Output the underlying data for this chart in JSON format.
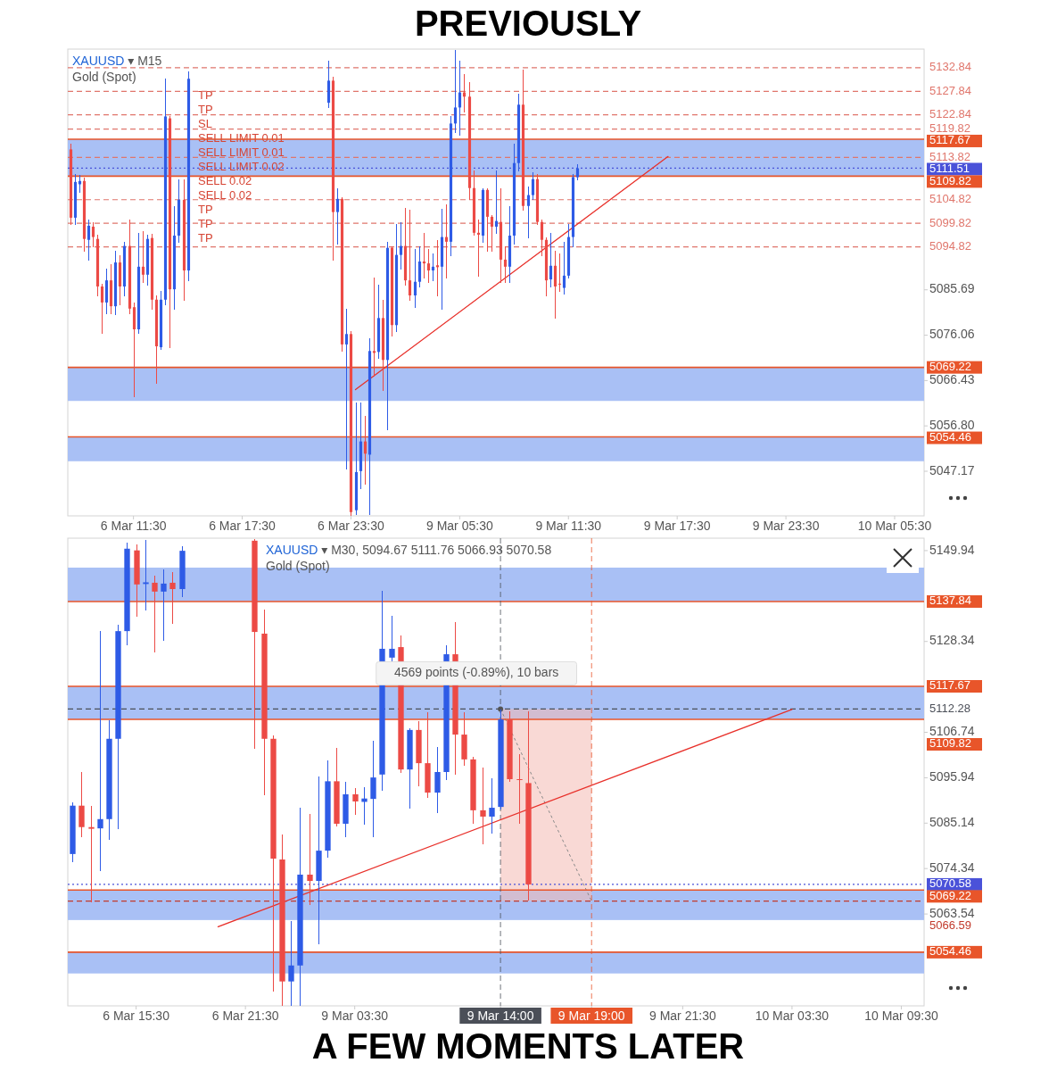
{
  "chart_data": [
    {
      "type": "candlestick",
      "title": "PREVIOUSLY",
      "subtitle": "XAUUSD ▾ M15",
      "annotations": [
        "Gold (Spot)",
        "TP",
        "TP",
        "SL",
        "SELL LIMIT 0.01",
        "SELL LIMIT 0.01",
        "SELL LIMIT 0.02",
        "SELL 0.02",
        "SELL 0.02",
        "TP",
        "TP",
        "TP"
      ],
      "categories": [
        null,
        null,
        null,
        null,
        null,
        null,
        null,
        null,
        null,
        null,
        null,
        null,
        null,
        null,
        "6 Mar 11:30",
        null,
        null,
        null,
        null,
        null,
        null,
        null,
        null,
        null,
        null,
        null,
        null,
        null,
        null,
        null,
        null,
        null,
        null,
        null,
        null,
        null,
        null,
        null,
        "6 Mar 17:30",
        null,
        null,
        null,
        null,
        null,
        null,
        null,
        null,
        null,
        null,
        null,
        null,
        null,
        null,
        null,
        null,
        null,
        null,
        null,
        null,
        null,
        null,
        null,
        "6 Mar 23:30",
        null,
        null,
        null,
        null,
        null,
        null,
        null,
        null,
        null,
        null,
        null,
        null,
        null,
        null,
        null,
        null,
        null,
        null,
        null,
        null,
        null,
        null,
        null,
        "9 Mar 05:30",
        null,
        null,
        null,
        null,
        null,
        null,
        null,
        null,
        null,
        null,
        null,
        null,
        null,
        null,
        null,
        null,
        null,
        null,
        null,
        null,
        null,
        null,
        null,
        "9 Mar 11:30",
        null,
        null,
        null,
        null,
        null,
        null,
        null,
        null,
        null,
        null,
        null,
        null,
        null,
        null,
        null,
        null,
        null,
        null,
        null,
        null,
        null,
        null,
        null,
        "9 Mar 17:30",
        null,
        null,
        null,
        null,
        null,
        null,
        null,
        null,
        null,
        null,
        null,
        null,
        null,
        null,
        null,
        null,
        null,
        null,
        null,
        null,
        null,
        null,
        null,
        "9 Mar 23:30",
        null,
        null,
        null,
        null,
        null,
        null,
        null,
        null,
        null,
        null,
        null,
        null,
        null,
        null,
        null,
        null,
        null,
        null,
        null,
        null,
        null,
        null,
        null,
        "10 Mar 05:30",
        null,
        null,
        null,
        null,
        null,
        null
      ],
      "ylim": [
        5037.7,
        5136.8
      ],
      "yticks": [
        5085.69,
        5076.06,
        5066.43,
        {
          "value": 5056.8,
          "label": "5056.80"
        },
        5047.17
      ],
      "bands": [
        {
          "axis": "y",
          "from": 5109.82,
          "to": 5117.67,
          "color": "#a9c0f5"
        },
        {
          "axis": "y",
          "from": 5062.1,
          "to": 5069.22,
          "color": "#a9c0f5"
        },
        {
          "axis": "y",
          "from": 5049.3,
          "to": 5054.46,
          "color": "#a9c0f5"
        }
      ],
      "ref_lines": [
        {
          "axis": "y",
          "value": 5132.84,
          "label": "5132.84",
          "color": "#e0766c",
          "line_style": "dashed"
        },
        {
          "axis": "y",
          "value": 5127.84,
          "label": "5127.84",
          "color": "#e0766c",
          "line_style": "dashed"
        },
        {
          "axis": "y",
          "value": 5122.84,
          "label": "5122.84",
          "color": "#e0766c",
          "line_style": "dashed"
        },
        {
          "axis": "y",
          "value": 5119.82,
          "label": "5119.82",
          "color": "#e0766c",
          "line_style": "dashed"
        },
        {
          "axis": "y",
          "value": 5117.67,
          "label": "5117.67",
          "color": "#e8552a",
          "line_style": "solid"
        },
        {
          "axis": "y",
          "value": 5113.82,
          "label": "5113.82",
          "color": "#e0766c",
          "line_style": "dashed"
        },
        {
          "axis": "y",
          "value": 5111.51,
          "label": "5111.51",
          "color": "#4a52d9",
          "line_style": "dotted"
        },
        {
          "axis": "y",
          "value": 5109.82,
          "label": "5109.82",
          "color": "#e8552a",
          "line_style": "solid"
        },
        {
          "axis": "y",
          "value": 5104.82,
          "label": "5104.82",
          "color": "#e0766c",
          "line_style": "dashed"
        },
        {
          "axis": "y",
          "value": 5099.82,
          "label": "5099.82",
          "color": "#e0766c",
          "line_style": "dashed"
        },
        {
          "axis": "y",
          "value": 5094.82,
          "label": "5094.82",
          "color": "#e0766c",
          "line_style": "dashed"
        },
        {
          "axis": "y",
          "value": 5069.22,
          "label": "5069.22",
          "color": "#e8552a",
          "line_style": "solid"
        },
        {
          "axis": "y",
          "value": 5054.46,
          "label": "5054.46",
          "color": "#e8552a",
          "line_style": "solid"
        }
      ],
      "series": [
        {
          "color": "#2e5be6",
          "ohlc": [
            null,
            [
              5101.0,
              5110.2,
              5099.7,
              5108.6
            ],
            [
              5108.1,
              5110.0,
              5106.4,
              5108.8
            ],
            null,
            [
              5096.3,
              5100.7,
              5092.1,
              5099.3
            ],
            null,
            null,
            null,
            [
              5083.0,
              5090.2,
              5080.7,
              5087.7
            ],
            null,
            [
              5082.2,
              5094.0,
              5080.5,
              5091.5
            ],
            null,
            [
              5086.4,
              5095.9,
              5084.5,
              5095.0
            ],
            null,
            null,
            [
              5077.3,
              5097.8,
              5076.5,
              5090.6
            ],
            null,
            [
              5088.9,
              5097.4,
              5086.8,
              5096.5
            ],
            null,
            null,
            [
              5073.5,
              5085.4,
              5073.1,
              5083.6
            ],
            [
              5083.6,
              5130.5,
              5082.6,
              5122.5
            ],
            null,
            [
              5085.8,
              5103.5,
              5081.7,
              5097.2
            ],
            [
              5097.2,
              5109.2,
              5095.9,
              5104.8
            ],
            null,
            [
              5089.8,
              5132.0,
              5087.7,
              5130.5
            ],
            null,
            null,
            null,
            null,
            null,
            null,
            null,
            null,
            null,
            null,
            null,
            null,
            null,
            null,
            null,
            null,
            null,
            null,
            null,
            null,
            null,
            null,
            null,
            null,
            null,
            null,
            null,
            null,
            null,
            null,
            [
              5125.4,
              5134.3,
              5124.4,
              5130.1
            ],
            null,
            [
              5102.2,
              5107.3,
              5095.5,
              5105.0
            ],
            null,
            [
              5074.1,
              5081.7,
              5047.8,
              5076.3
            ],
            null,
            [
              5038.9,
              5061.7,
              5038.0,
              5047.0
            ],
            [
              5047.2,
              5061.7,
              5043.6,
              5053.5
            ],
            null,
            [
              5050.7,
              5075.4,
              5038.0,
              5072.7
            ],
            null,
            [
              5072.5,
              5086.8,
              5071.2,
              5079.7
            ],
            null,
            [
              5070.8,
              5095.9,
              5056.0,
              5094.6
            ],
            null,
            [
              5078.2,
              5099.7,
              5076.9,
              5093.1
            ],
            [
              5093.1,
              5100.1,
              5090.2,
              5095.0
            ],
            null,
            null,
            [
              5084.5,
              5094.4,
              5082.0,
              5087.4
            ],
            [
              5087.4,
              5095.0,
              5086.4,
              5091.7
            ],
            null,
            null,
            [
              5089.8,
              5093.4,
              5087.7,
              5090.6
            ],
            null,
            [
              5090.6,
              5102.9,
              5081.7,
              5096.9
            ],
            null,
            [
              5095.9,
              5122.5,
              5093.1,
              5121.0
            ],
            [
              5121.0,
              5136.6,
              5119.1,
              5124.4
            ],
            [
              5124.4,
              5134.3,
              5118.7,
              5127.6
            ],
            null,
            null,
            null,
            null,
            [
              5097.2,
              5107.3,
              5095.9,
              5106.9
            ],
            null,
            null,
            [
              5099.1,
              5111.1,
              5097.8,
              5100.3
            ],
            null,
            null,
            [
              5090.6,
              5103.5,
              5087.4,
              5097.2
            ],
            [
              5097.2,
              5116.8,
              5095.5,
              5112.6
            ],
            [
              5112.6,
              5127.3,
              5111.1,
              5125.0
            ],
            null,
            [
              5103.5,
              5107.7,
              5096.9,
              5105.8
            ],
            [
              5105.8,
              5110.7,
              5105.0,
              5109.2
            ],
            null,
            null,
            null,
            [
              5087.9,
              5097.8,
              5086.4,
              5090.8
            ],
            null,
            null,
            [
              5086.1,
              5095.9,
              5084.9,
              5088.7
            ],
            [
              5088.7,
              5099.7,
              5088.3,
              5096.9
            ],
            [
              5096.9,
              5110.2,
              5095.0,
              5109.6
            ],
            [
              5109.6,
              5112.4,
              5109.2,
              5111.5
            ],
            null,
            null,
            null,
            null,
            null,
            null,
            null,
            null,
            null,
            null,
            null,
            null,
            null,
            null,
            null,
            null,
            null,
            null,
            null,
            null,
            null,
            null,
            null,
            null,
            null,
            null,
            null,
            null,
            null,
            null,
            null,
            null,
            null,
            null,
            null,
            null,
            null,
            null,
            null,
            null,
            null,
            null,
            null,
            null,
            null,
            null,
            null,
            null,
            null,
            null,
            null,
            null,
            null,
            null,
            null,
            null,
            null,
            null,
            null,
            null,
            null,
            null,
            null,
            null,
            null,
            null,
            null,
            null,
            null,
            null,
            null,
            null,
            null,
            null,
            null,
            null
          ]
        },
        {
          "color": "#ec4a45",
          "ohlc": [
            [
              5115.5,
              5116.8,
              5099.7,
              5101.0
            ],
            null,
            null,
            [
              5108.8,
              5109.6,
              5094.0,
              5096.5
            ],
            null,
            [
              5099.1,
              5100.1,
              5094.9,
              5096.9
            ],
            [
              5096.5,
              5097.4,
              5084.5,
              5086.4
            ],
            [
              5086.4,
              5087.0,
              5076.5,
              5083.0
            ],
            null,
            [
              5087.7,
              5091.2,
              5080.7,
              5082.2
            ],
            null,
            [
              5091.5,
              5093.0,
              5082.6,
              5086.4
            ],
            null,
            [
              5095.0,
              5100.7,
              5080.7,
              5081.7
            ],
            [
              5082.0,
              5083.0,
              5063.0,
              5077.3
            ],
            null,
            [
              5090.6,
              5098.2,
              5087.4,
              5088.9
            ],
            null,
            [
              5096.7,
              5097.5,
              5081.7,
              5083.6
            ],
            [
              5083.6,
              5084.5,
              5065.9,
              5073.7
            ],
            null,
            null,
            [
              5122.1,
              5122.5,
              5073.5,
              5085.8
            ],
            null,
            null,
            [
              5104.8,
              5109.2,
              5083.6,
              5089.8
            ],
            null,
            null,
            null,
            null,
            null,
            null,
            null,
            null,
            null,
            null,
            null,
            null,
            null,
            null,
            null,
            null,
            null,
            null,
            null,
            null,
            null,
            null,
            null,
            null,
            null,
            null,
            null,
            null,
            null,
            null,
            null,
            null,
            [
              5130.1,
              5131.0,
              5092.1,
              5102.2
            ],
            null,
            [
              5105.0,
              5105.4,
              5072.7,
              5074.1
            ],
            null,
            [
              5076.3,
              5076.9,
              5037.9,
              5038.5
            ],
            null,
            null,
            [
              5053.5,
              5058.9,
              5044.6,
              5050.9
            ],
            null,
            [
              5072.7,
              5088.3,
              5067.4,
              5072.3
            ],
            null,
            [
              5079.7,
              5083.6,
              5064.5,
              5070.8
            ],
            null,
            [
              5094.6,
              5095.0,
              5076.0,
              5078.2
            ],
            null,
            null,
            [
              5095.0,
              5103.1,
              5086.8,
              5087.7
            ],
            [
              5087.7,
              5102.6,
              5083.6,
              5084.5
            ],
            null,
            null,
            [
              5091.7,
              5097.8,
              5088.3,
              5091.3
            ],
            [
              5091.3,
              5094.4,
              5087.4,
              5089.8
            ],
            null,
            [
              5090.9,
              5096.3,
              5084.5,
              5090.5
            ],
            null,
            [
              5096.9,
              5103.9,
              5088.3,
              5095.9
            ],
            null,
            null,
            null,
            [
              5127.6,
              5131.4,
              5123.5,
              5126.7
            ],
            [
              5126.7,
              5129.7,
              5105.0,
              5107.3
            ],
            [
              5107.3,
              5111.1,
              5097.4,
              5097.8
            ],
            [
              5097.8,
              5100.7,
              5088.7,
              5097.4
            ],
            null,
            [
              5106.9,
              5107.3,
              5094.0,
              5101.2
            ],
            [
              5101.2,
              5101.6,
              5094.0,
              5099.1
            ],
            null,
            [
              5100.1,
              5107.3,
              5087.4,
              5092.1
            ],
            [
              5092.1,
              5095.0,
              5087.4,
              5090.6
            ],
            null,
            null,
            null,
            [
              5125.0,
              5132.4,
              5102.6,
              5103.5
            ],
            null,
            null,
            [
              5109.2,
              5110.2,
              5099.7,
              5100.1
            ],
            [
              5100.1,
              5100.7,
              5093.1,
              5096.3
            ],
            [
              5096.3,
              5096.9,
              5084.5,
              5087.7
            ],
            null,
            [
              5090.8,
              5094.0,
              5079.7,
              5086.4
            ],
            [
              5087.0,
              5093.4,
              5085.4,
              5086.8
            ],
            null,
            null,
            null,
            null,
            null,
            null,
            null,
            null,
            null,
            null,
            null,
            null,
            null,
            null,
            null,
            null,
            null,
            null,
            null,
            null,
            null,
            null,
            null,
            null,
            null,
            null,
            null,
            null,
            null,
            null,
            null,
            null,
            null,
            null,
            null,
            null,
            null,
            null,
            null,
            null,
            null,
            null,
            null,
            null,
            null,
            null,
            null,
            null,
            null,
            null,
            null,
            null,
            null,
            null,
            null,
            null,
            null,
            null,
            null,
            null,
            null,
            null,
            null,
            null,
            null,
            null,
            null,
            null,
            null,
            null,
            null,
            null,
            null,
            null,
            null,
            null,
            null,
            null,
            null,
            null
          ]
        },
        {
          "type": "line",
          "color": "#e8302a",
          "values": [
            null,
            null,
            null,
            null,
            null,
            null,
            null,
            null,
            null,
            null,
            null,
            null,
            null,
            null,
            null,
            null,
            null,
            null,
            null,
            null,
            null,
            null,
            null,
            null,
            null,
            null,
            null,
            null,
            null,
            null,
            null,
            null,
            null,
            null,
            null,
            null,
            null,
            null,
            null,
            null,
            null,
            null,
            null,
            null,
            null,
            null,
            null,
            null,
            null,
            null,
            null,
            null,
            null,
            null,
            null,
            null,
            null,
            null,
            null,
            null,
            null,
            null,
            null,
            5064.5,
            null,
            null,
            null,
            null,
            null,
            null,
            null,
            null,
            null,
            null,
            null,
            null,
            null,
            null,
            null,
            null,
            null,
            null,
            null,
            null,
            null,
            null,
            null,
            null,
            null,
            null,
            null,
            null,
            null,
            null,
            null,
            null,
            null,
            null,
            null,
            null,
            null,
            null,
            null,
            null,
            null,
            null,
            null,
            null,
            null,
            null,
            null,
            null,
            null,
            null,
            null,
            null,
            null,
            null,
            null,
            null,
            null,
            null,
            null,
            null,
            null,
            null,
            null,
            null,
            null,
            null,
            null,
            null,
            5114.0,
            null,
            null,
            null,
            null,
            null,
            null,
            null,
            null,
            null,
            null,
            null,
            null,
            null,
            null,
            null,
            null,
            null,
            null,
            null,
            null,
            null,
            null,
            null,
            null,
            null,
            null,
            null,
            null,
            null,
            null,
            null,
            null,
            null,
            null,
            null,
            null,
            null,
            null,
            null,
            null,
            null,
            null,
            null,
            null,
            null,
            null,
            null,
            null,
            null,
            null,
            null,
            null,
            null,
            null,
            null,
            null
          ]
        }
      ]
    },
    {
      "type": "candlestick",
      "title": "A FEW MOMENTS LATER",
      "subtitle": "XAUUSD ▾ M30, 5094.67 5111.76 5066.93 5070.58",
      "annotations": [
        "Gold (Spot)",
        {
          "text": "4569 points (-0.89%), 10 bars",
          "x": "9 Mar 14:00",
          "y": 5112.28
        }
      ],
      "categories": [
        null,
        null,
        null,
        null,
        null,
        null,
        null,
        "6 Mar 15:30",
        null,
        null,
        null,
        null,
        null,
        null,
        null,
        null,
        null,
        null,
        null,
        "6 Mar 21:30",
        null,
        null,
        null,
        null,
        null,
        null,
        null,
        null,
        null,
        null,
        null,
        "9 Mar 03:30",
        null,
        null,
        null,
        null,
        null,
        null,
        null,
        null,
        null,
        null,
        null,
        null,
        null,
        null,
        null,
        "9 Mar 14:00",
        null,
        null,
        null,
        null,
        null,
        null,
        null,
        null,
        null,
        "9 Mar 19:00",
        null,
        null,
        null,
        null,
        null,
        null,
        null,
        null,
        null,
        "9 Mar 21:30",
        null,
        null,
        null,
        null,
        null,
        null,
        null,
        null,
        null,
        null,
        null,
        "10 Mar 03:30",
        null,
        null,
        null,
        null,
        null,
        null,
        null,
        null,
        null,
        null,
        null,
        "10 Mar 09:30",
        null,
        null
      ],
      "ylim": [
        5041.7,
        5152.9
      ],
      "yticks": [
        5149.94,
        5128.34,
        5106.74,
        5095.94,
        5085.14,
        5074.34,
        5063.54
      ],
      "bands": [
        {
          "axis": "y",
          "from": 5137.84,
          "to": 5145.9,
          "color": "#a9c0f5"
        },
        {
          "axis": "y",
          "from": 5109.82,
          "to": 5117.67,
          "color": "#a9c0f5"
        },
        {
          "axis": "y",
          "from": 5062.1,
          "to": 5069.22,
          "color": "#a9c0f5"
        },
        {
          "axis": "y",
          "from": 5049.4,
          "to": 5054.46,
          "color": "#a9c0f5"
        }
      ],
      "ref_lines": [
        {
          "axis": "y",
          "value": 5137.84,
          "label": "5137.84",
          "color": "#e8552a",
          "line_style": "solid"
        },
        {
          "axis": "y",
          "value": 5117.67,
          "label": "5117.67",
          "color": "#e8552a",
          "line_style": "solid"
        },
        {
          "axis": "y",
          "value": 5112.28,
          "label": "5112.28",
          "color": "#4b4f58",
          "line_style": "dashed"
        },
        {
          "axis": "y",
          "value": 5109.82,
          "label": "5109.82",
          "color": "#e8552a",
          "line_style": "solid"
        },
        {
          "axis": "y",
          "value": 5070.58,
          "label": "5070.58",
          "color": "#4a52d9",
          "line_style": "dotted"
        },
        {
          "axis": "y",
          "value": 5069.22,
          "label": "5069.22",
          "color": "#e8552a",
          "line_style": "solid"
        },
        {
          "axis": "y",
          "value": 5066.59,
          "label": "5066.59",
          "color": "#c23a2c",
          "line_style": "dashed"
        },
        {
          "axis": "y",
          "value": 5054.46,
          "label": "5054.46",
          "color": "#e8552a",
          "line_style": "solid"
        },
        {
          "axis": "x",
          "value": "9 Mar 14:00",
          "color": "#4b4f58",
          "line_style": "dashed"
        },
        {
          "axis": "x",
          "value": "9 Mar 19:00",
          "color": "#e8552a",
          "line_style": "dashed"
        }
      ],
      "series": [
        {
          "color": "#2e5be6",
          "ohlc": [
            [
              5077.8,
              5090.0,
              5076.1,
              5089.3
            ],
            null,
            null,
            [
              5083.9,
              5130.8,
              5074.0,
              5086.1
            ],
            [
              5086.1,
              5109.6,
              5081.4,
              5105.2
            ],
            [
              5105.2,
              5132.3,
              5083.9,
              5130.8
            ],
            [
              5130.8,
              5151.8,
              5127.7,
              5150.4
            ],
            null,
            [
              5142.0,
              5152.5,
              5135.9,
              5142.4
            ],
            null,
            [
              5140.2,
              5145.5,
              5128.7,
              5142.1
            ],
            null,
            [
              5140.8,
              5151.0,
              5139.1,
              5149.9
            ],
            null,
            null,
            null,
            null,
            null,
            null,
            null,
            null,
            null,
            null,
            null,
            [
              5047.5,
              5061.9,
              5042.0,
              5051.3
            ],
            [
              5051.3,
              5088.8,
              5042.0,
              5072.9
            ],
            null,
            [
              5071.4,
              5096.2,
              5056.5,
              5078.6
            ],
            [
              5078.6,
              5100.1,
              5077.1,
              5095.1
            ],
            null,
            [
              5085.0,
              5095.0,
              5082.0,
              5092.0
            ],
            null,
            [
              5090.2,
              5093.6,
              5085.0,
              5091.0
            ],
            [
              5090.9,
              5104.7,
              5082.0,
              5096.0
            ],
            [
              5096.7,
              5140.4,
              5093.1,
              5126.6
            ],
            [
              5124.5,
              5134.5,
              5123.8,
              5126.6
            ],
            null,
            [
              5097.9,
              5107.6,
              5088.8,
              5107.3
            ],
            null,
            null,
            [
              5092.4,
              5103.3,
              5087.8,
              5097.3
            ],
            [
              5097.3,
              5127.5,
              5095.6,
              5125.3
            ],
            null,
            null,
            null,
            null,
            [
              5086.7,
              5095.8,
              5082.9,
              5088.8
            ],
            [
              5089.0,
              5112.1,
              5088.5,
              5109.8
            ],
            null,
            null,
            null,
            null,
            null,
            null,
            null,
            null,
            null,
            null,
            null,
            null,
            null,
            null,
            null,
            null,
            null,
            null,
            null,
            null,
            null,
            null,
            null,
            null,
            null,
            null,
            null,
            null,
            null,
            null,
            null,
            null,
            null,
            null,
            null,
            null,
            null,
            null,
            null,
            null,
            null,
            null,
            null,
            null,
            null,
            null
          ]
        },
        {
          "color": "#ec4a45",
          "ohlc": [
            null,
            [
              5089.3,
              5097.3,
              5082.0,
              5084.2
            ],
            [
              5084.2,
              5089.3,
              5066.5,
              5083.8
            ],
            null,
            null,
            null,
            null,
            [
              5150.0,
              5151.5,
              5134.5,
              5141.9
            ],
            null,
            [
              5142.3,
              5144.0,
              5126.0,
              5140.2
            ],
            null,
            [
              5142.3,
              5144.8,
              5132.8,
              5140.8
            ],
            null,
            null,
            null,
            null,
            null,
            null,
            null,
            null,
            [
              5152.3,
              5152.7,
              5103.0,
              5130.6
            ],
            [
              5130.2,
              5135.9,
              5092.0,
              5105.2
            ],
            [
              5105.2,
              5106.0,
              5045.3,
              5076.7
            ],
            [
              5076.5,
              5082.5,
              5042.0,
              5047.5
            ],
            null,
            null,
            [
              5072.9,
              5087.3,
              5065.8,
              5071.4
            ],
            null,
            null,
            [
              5095.1,
              5103.1,
              5084.5,
              5085.0
            ],
            null,
            [
              5092.0,
              5093.5,
              5087.3,
              5090.3
            ],
            null,
            null,
            null,
            null,
            [
              5127.0,
              5129.8,
              5097.3,
              5097.9
            ],
            null,
            [
              5107.3,
              5109.4,
              5094.1,
              5099.4
            ],
            [
              5099.4,
              5111.5,
              5091.4,
              5092.4
            ],
            null,
            null,
            [
              5125.3,
              5133.0,
              5096.9,
              5106.2
            ],
            [
              5106.2,
              5111.5,
              5099.0,
              5100.3
            ],
            [
              5100.3,
              5100.9,
              5085.2,
              5088.2
            ],
            [
              5088.2,
              5098.4,
              5080.3,
              5086.7
            ],
            null,
            null,
            [
              5109.8,
              5111.7,
              5095.1,
              5095.6
            ],
            [
              5095.6,
              5101.5,
              5085.2,
              5095.4
            ],
            [
              5094.67,
              5111.76,
              5066.93,
              5070.58
            ],
            null,
            null,
            null,
            null,
            null,
            null,
            null,
            null,
            null,
            null,
            null,
            null,
            null,
            null,
            null,
            null,
            null,
            null,
            null,
            null,
            null,
            null,
            null,
            null,
            null,
            null,
            null,
            null,
            null,
            null,
            null,
            null,
            null,
            null,
            null,
            null,
            null,
            null,
            null,
            null,
            null,
            null,
            null
          ]
        },
        {
          "type": "line",
          "color": "#e8302a",
          "values": [
            null,
            null,
            null,
            null,
            null,
            null,
            null,
            null,
            null,
            null,
            null,
            null,
            null,
            null,
            null,
            null,
            5060.5,
            null,
            null,
            null,
            null,
            null,
            null,
            null,
            null,
            null,
            null,
            null,
            null,
            null,
            null,
            null,
            null,
            null,
            null,
            null,
            null,
            null,
            null,
            null,
            null,
            null,
            null,
            null,
            null,
            null,
            null,
            null,
            null,
            null,
            null,
            null,
            null,
            null,
            null,
            null,
            null,
            null,
            null,
            null,
            null,
            null,
            null,
            null,
            null,
            null,
            null,
            null,
            null,
            null,
            null,
            null,
            null,
            null,
            null,
            null,
            null,
            null,
            null,
            5112.2,
            null,
            null,
            null,
            null,
            null,
            null,
            null,
            null,
            null,
            null,
            null,
            null,
            null,
            null
          ]
        }
      ]
    }
  ]
}
